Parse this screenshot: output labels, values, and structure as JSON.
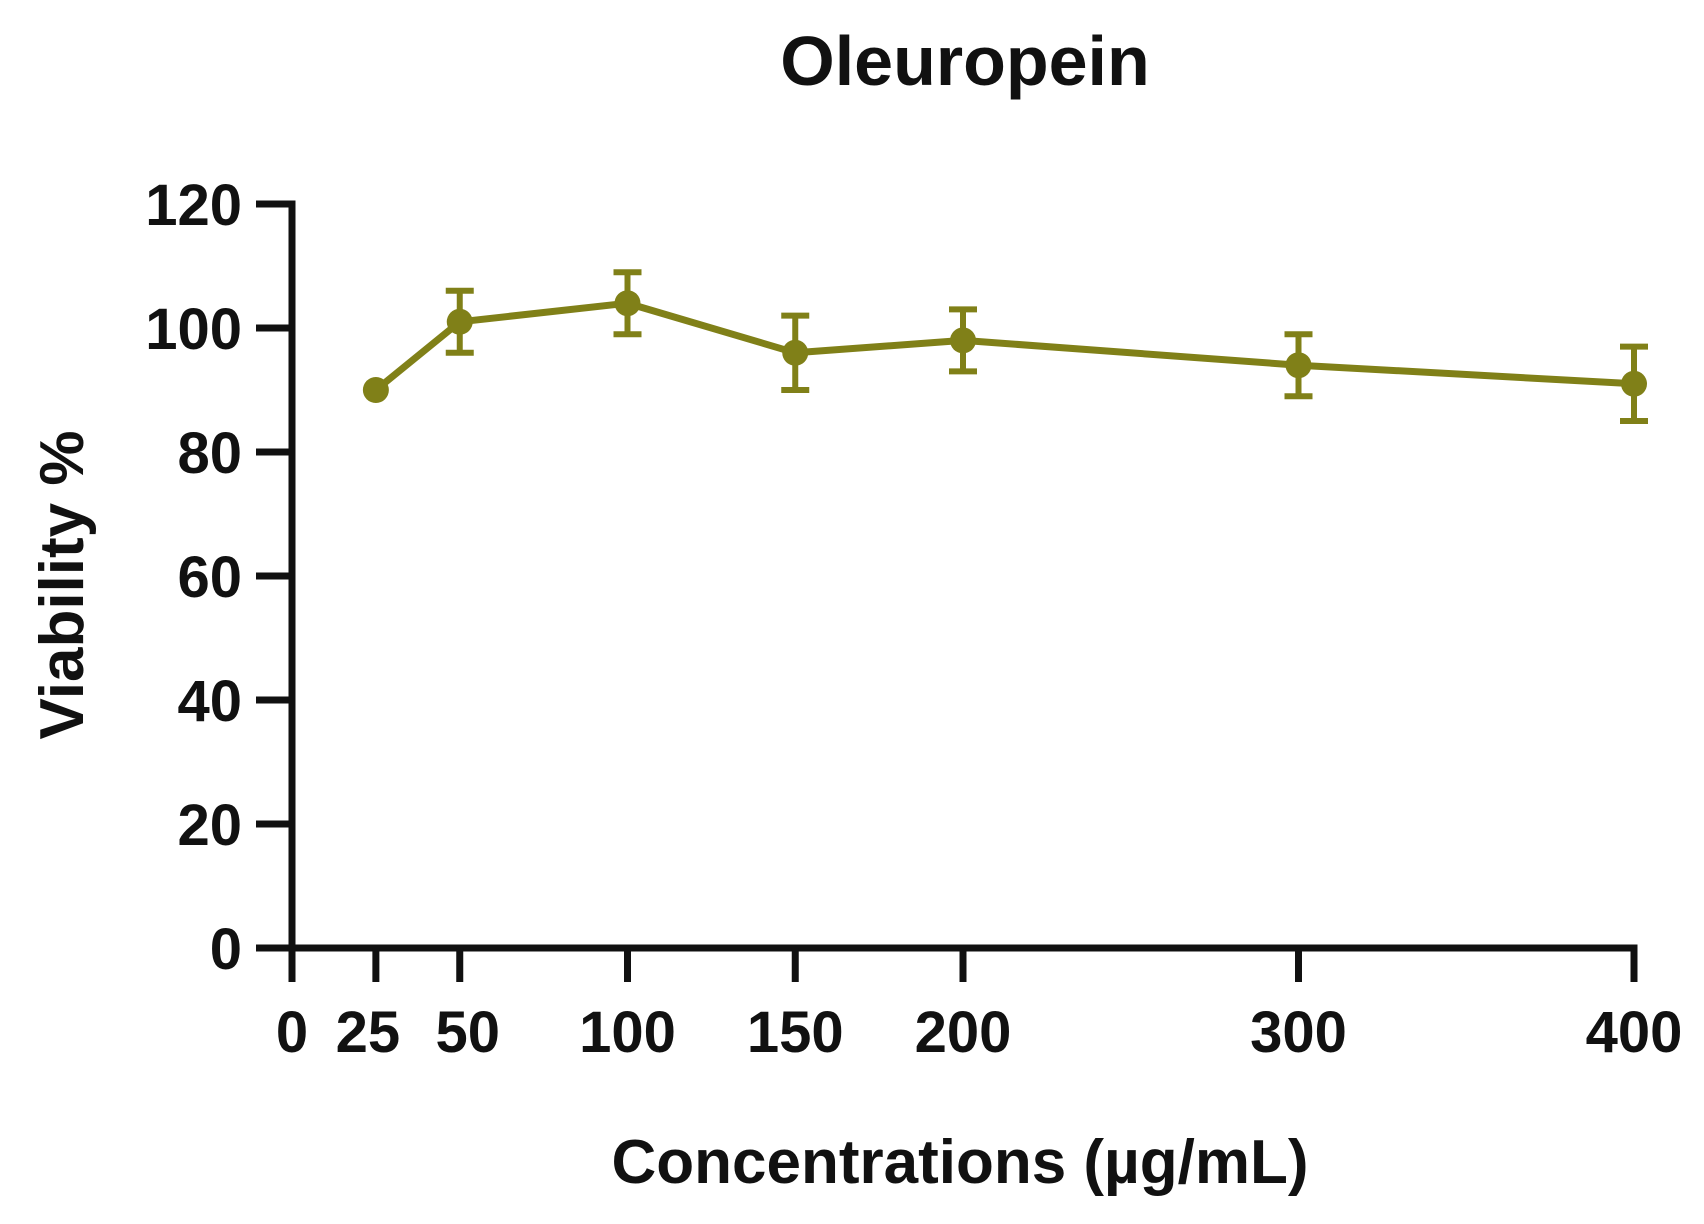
{
  "chart_data": {
    "type": "line",
    "title": "Oleuropein",
    "xlabel": "Concentrations (µg/mL)",
    "ylabel": "Viability %",
    "xlim": [
      0,
      400
    ],
    "ylim": [
      0,
      120
    ],
    "xticks": [
      0,
      25,
      50,
      100,
      150,
      200,
      300,
      400
    ],
    "yticks": [
      0,
      20,
      40,
      60,
      80,
      100,
      120
    ],
    "xtick_labels": [
      "0",
      "25",
      "50",
      "100",
      "150",
      "200",
      "300",
      "400"
    ],
    "ytick_labels": [
      "0",
      "20",
      "40",
      "60",
      "80",
      "100",
      "120"
    ],
    "grid": false,
    "color": "#808018",
    "series": [
      {
        "x": [
          25,
          50,
          100,
          150,
          200,
          300,
          400
        ],
        "y": [
          90,
          101,
          104,
          96,
          98,
          94,
          91
        ],
        "error": [
          0,
          5,
          5,
          6,
          5,
          5,
          6
        ]
      }
    ]
  }
}
